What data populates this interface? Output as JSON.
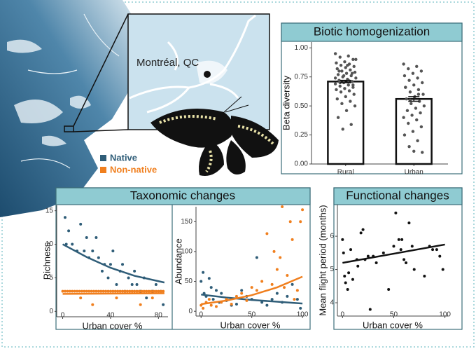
{
  "map": {
    "label": "Montréal, QC"
  },
  "chart_data": [
    {
      "type": "bar",
      "title": "Biotic homogenization",
      "ylabel": "Beta diversity",
      "categories": [
        "Rural",
        "Urban"
      ],
      "values": [
        0.71,
        0.56
      ],
      "errors": [
        0.01,
        0.02
      ],
      "color": "#ffffff",
      "point_color": "#555555",
      "points": [
        [
          0.95,
          0.93,
          0.92,
          0.9,
          0.88,
          0.87,
          0.86,
          0.85,
          0.84,
          0.83,
          0.82,
          0.81,
          0.8,
          0.79,
          0.78,
          0.77,
          0.76,
          0.75,
          0.74,
          0.73,
          0.72,
          0.71,
          0.7,
          0.69,
          0.68,
          0.67,
          0.66,
          0.65,
          0.64,
          0.63,
          0.62,
          0.6,
          0.58,
          0.56,
          0.54,
          0.52,
          0.5,
          0.46,
          0.4,
          0.34,
          0.3,
          0.9,
          0.85,
          0.8,
          0.78,
          0.76,
          0.74,
          0.72,
          0.7,
          0.68
        ],
        [
          0.86,
          0.84,
          0.82,
          0.8,
          0.78,
          0.76,
          0.74,
          0.72,
          0.7,
          0.68,
          0.66,
          0.64,
          0.62,
          0.6,
          0.58,
          0.56,
          0.54,
          0.52,
          0.5,
          0.48,
          0.46,
          0.44,
          0.42,
          0.4,
          0.38,
          0.35,
          0.32,
          0.28,
          0.25,
          0.2,
          0.15,
          0.1,
          0.11,
          0.66,
          0.6,
          0.55
        ]
      ],
      "ylim": [
        0,
        1.05
      ],
      "yticks": [
        {
          "value": 0,
          "label": "0.00"
        },
        {
          "value": 0.25,
          "label": "0.25"
        },
        {
          "value": 0.5,
          "label": "0.50"
        },
        {
          "value": 0.75,
          "label": "0.75"
        },
        {
          "value": 1,
          "label": "1.00"
        }
      ]
    },
    {
      "type": "scatter",
      "title": "Taxonomic changes",
      "xlabel": "Urban cover %",
      "ylabel": "Richness",
      "series": [
        {
          "name": "Native",
          "color": "#2f5d78",
          "x": [
            2,
            3,
            5,
            8,
            12,
            15,
            18,
            20,
            22,
            25,
            28,
            30,
            33,
            35,
            38,
            40,
            42,
            45,
            48,
            50,
            52,
            55,
            58,
            60,
            62,
            65,
            68,
            70,
            75,
            78,
            82,
            84
          ],
          "values": [
            14,
            10,
            12,
            10,
            9,
            13,
            9,
            11,
            8,
            9,
            11,
            8,
            6,
            7,
            5,
            7,
            9,
            4,
            6,
            7,
            3,
            5,
            4,
            6,
            4,
            3,
            5,
            2,
            3,
            4,
            3,
            1
          ],
          "fit": {
            "x": [
              0,
              20,
              40,
              60,
              85
            ],
            "values": [
              10,
              8.1,
              6.5,
              5.3,
              4.3
            ]
          }
        },
        {
          "name": "Non-native",
          "color": "#f07f1e",
          "x": [
            0,
            2,
            4,
            6,
            8,
            10,
            12,
            14,
            16,
            18,
            20,
            22,
            24,
            26,
            28,
            30,
            32,
            34,
            36,
            38,
            40,
            42,
            44,
            46,
            48,
            50,
            52,
            54,
            56,
            58,
            60,
            62,
            64,
            66,
            68,
            70,
            72,
            74,
            76,
            78,
            80,
            82,
            84,
            15,
            25,
            45,
            65,
            75
          ],
          "values": [
            3,
            3,
            3,
            3,
            3,
            3,
            3,
            3,
            3,
            3,
            3,
            3,
            3,
            3,
            3,
            3,
            3,
            3,
            3,
            3,
            3,
            3,
            3,
            3,
            3,
            3,
            3,
            3,
            3,
            3,
            3,
            3,
            3,
            3,
            3,
            3,
            3,
            3,
            3,
            3,
            3,
            3,
            3,
            2,
            1,
            2,
            1,
            2
          ],
          "fit": {
            "x": [
              0,
              85
            ],
            "values": [
              2.6,
              2.7
            ]
          }
        }
      ],
      "xlim": [
        -5,
        88
      ],
      "ylim": [
        -0.8,
        15.8
      ],
      "xticks": [
        0,
        40,
        80
      ],
      "yticks": [
        0,
        5,
        10,
        15
      ]
    },
    {
      "type": "scatter",
      "xlabel": "Urban cover %",
      "ylabel": "Abundance",
      "series": [
        {
          "color": "#2f5d78",
          "x": [
            0,
            2,
            3,
            5,
            8,
            10,
            12,
            15,
            18,
            20,
            25,
            30,
            35,
            40,
            45,
            50,
            55,
            60,
            65,
            70,
            75,
            80,
            85,
            90,
            95,
            98
          ],
          "values": [
            50,
            65,
            30,
            25,
            55,
            40,
            20,
            35,
            15,
            30,
            18,
            10,
            12,
            35,
            25,
            20,
            90,
            15,
            10,
            20,
            30,
            15,
            25,
            45,
            20,
            5
          ],
          "fit": {
            "x": [
              0,
              25,
              50,
              75,
              100
            ],
            "values": [
              28,
              23,
              19,
              16,
              13
            ]
          }
        },
        {
          "color": "#f07f1e",
          "x": [
            0,
            2,
            5,
            8,
            10,
            15,
            20,
            25,
            30,
            35,
            40,
            45,
            50,
            55,
            60,
            65,
            70,
            72,
            75,
            78,
            80,
            82,
            85,
            88,
            90,
            92,
            95,
            98,
            100
          ],
          "values": [
            10,
            5,
            15,
            20,
            10,
            8,
            15,
            20,
            12,
            25,
            30,
            18,
            40,
            35,
            50,
            130,
            45,
            100,
            70,
            90,
            175,
            40,
            60,
            150,
            120,
            20,
            35,
            150,
            170
          ],
          "fit": {
            "x": [
              0,
              25,
              50,
              75,
              100
            ],
            "values": [
              12,
              18,
              27,
              40,
              58
            ]
          }
        }
      ],
      "xlim": [
        -5,
        102
      ],
      "ylim": [
        -8,
        175
      ],
      "xticks": [
        0,
        50,
        100
      ],
      "yticks": [
        0,
        50,
        100,
        150
      ]
    },
    {
      "type": "scatter",
      "title": "Functional changes",
      "xlabel": "Urban cover %",
      "ylabel": "Mean flight period (months)",
      "series": [
        {
          "color": "#111111",
          "x": [
            0,
            1,
            2,
            3,
            5,
            6,
            8,
            10,
            14,
            15,
            18,
            20,
            22,
            25,
            27,
            30,
            33,
            40,
            45,
            50,
            52,
            55,
            57,
            58,
            60,
            62,
            65,
            68,
            70,
            80,
            85,
            88,
            92,
            95,
            98
          ],
          "values": [
            5.9,
            5.5,
            4.8,
            4.6,
            4.4,
            4.9,
            5.6,
            4.7,
            5.3,
            5.1,
            6.1,
            6.2,
            5.3,
            5.4,
            3.8,
            5.4,
            5.2,
            5.5,
            4.4,
            5.7,
            6.7,
            5.9,
            5.6,
            5.9,
            5.3,
            5.2,
            6.4,
            5.7,
            5.0,
            4.8,
            5.7,
            5.6,
            5.6,
            5.4,
            5.0
          ],
          "fit": {
            "x": [
              0,
              100
            ],
            "values": [
              5.2,
              5.75
            ]
          }
        }
      ],
      "xlim": [
        -5,
        103
      ],
      "ylim": [
        3.6,
        6.95
      ],
      "xticks": [
        0,
        50,
        100
      ],
      "yticks": [
        4,
        5,
        6
      ]
    }
  ]
}
